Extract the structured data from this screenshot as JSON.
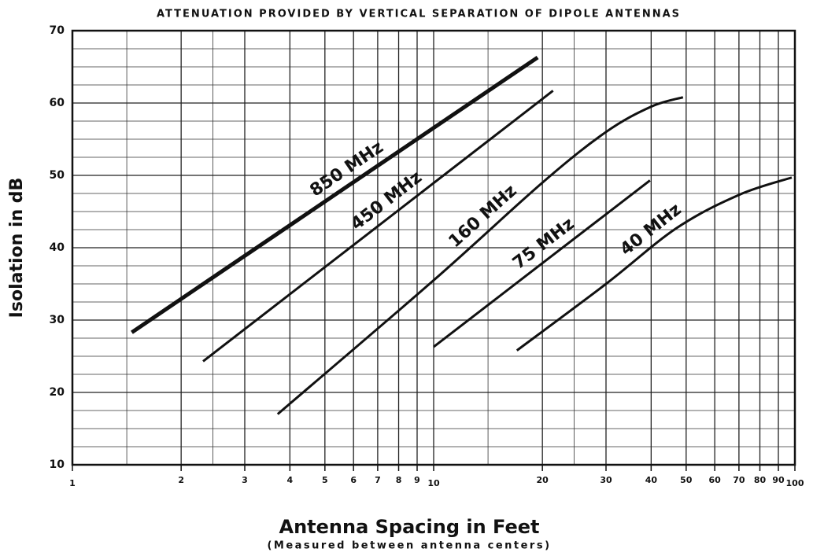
{
  "chart_data": {
    "type": "line",
    "title": "ATTENUATION PROVIDED BY VERTICAL SEPARATION OF DIPOLE ANTENNAS",
    "xlabel": "Antenna Spacing in Feet",
    "xlabel_note": "(Measured between antenna centers)",
    "ylabel": "Isolation in dB",
    "xscale": "log",
    "xlim": [
      1,
      100
    ],
    "xticks": [
      1,
      2,
      3,
      4,
      5,
      6,
      7,
      8,
      9,
      10,
      20,
      30,
      40,
      50,
      60,
      70,
      80,
      90,
      100
    ],
    "ylim": [
      10,
      70
    ],
    "yticks": [
      10,
      20,
      30,
      40,
      50,
      60,
      70
    ],
    "grid": true,
    "series": [
      {
        "name": "850 MHz",
        "color": "#111111",
        "line_width": 5,
        "x": [
          1.46,
          19.4
        ],
        "values": [
          28.3,
          66.3
        ]
      },
      {
        "name": "450 MHz",
        "color": "#111111",
        "line_width": 3,
        "x": [
          2.3,
          21.4
        ],
        "values": [
          24.3,
          61.7
        ]
      },
      {
        "name": "160 MHz",
        "color": "#111111",
        "line_width": 3,
        "x": [
          3.7,
          10,
          20,
          30,
          40,
          49
        ],
        "values": [
          17,
          35.5,
          49,
          56,
          59.5,
          60.8
        ]
      },
      {
        "name": "75 MHz",
        "color": "#111111",
        "line_width": 3,
        "x": [
          10,
          39.7
        ],
        "values": [
          26.3,
          49.3
        ]
      },
      {
        "name": "40 MHz",
        "color": "#111111",
        "line_width": 3,
        "x": [
          17,
          30,
          47,
          70,
          98
        ],
        "values": [
          25.8,
          35,
          42.7,
          47.3,
          49.7
        ]
      }
    ]
  }
}
